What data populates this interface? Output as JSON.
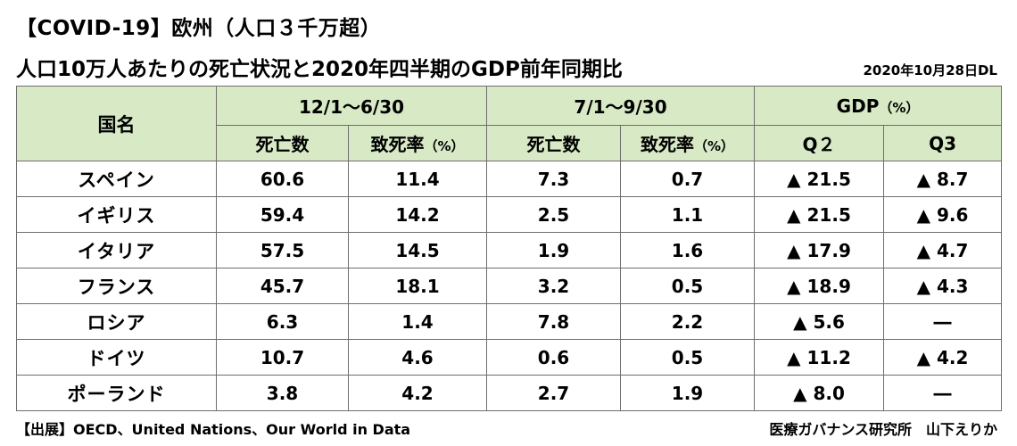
{
  "header": {
    "title": "【COVID-19】欧州（人口３千万超）",
    "subtitle": "人口10万人あたりの死亡状況と2020年四半期のGDP前年同期比",
    "date": "2020年10月28日DL"
  },
  "table": {
    "col_country": "国名",
    "group_a": "12/1～6/30",
    "group_b": "7/1～9/30",
    "group_gdp": "GDP",
    "group_gdp_unit": "（%）",
    "deaths_label": "死亡数",
    "cfr_label": "致死率",
    "cfr_unit": "（%）",
    "q2_label": "Q２",
    "q3_label": "Q3",
    "rows": [
      {
        "country": "スペイン",
        "d1": "60.6",
        "r1": "11.4",
        "d2": "7.3",
        "r2": "0.7",
        "q2": "▲ 21.5",
        "q3": "▲ 8.7"
      },
      {
        "country": "イギリス",
        "d1": "59.4",
        "r1": "14.2",
        "d2": "2.5",
        "r2": "1.1",
        "q2": "▲ 21.5",
        "q3": "▲ 9.6"
      },
      {
        "country": "イタリア",
        "d1": "57.5",
        "r1": "14.5",
        "d2": "1.9",
        "r2": "1.6",
        "q2": "▲ 17.9",
        "q3": "▲ 4.7"
      },
      {
        "country": "フランス",
        "d1": "45.7",
        "r1": "18.1",
        "d2": "3.2",
        "r2": "0.5",
        "q2": "▲ 18.9",
        "q3": "▲ 4.3"
      },
      {
        "country": "ロシア",
        "d1": "6.3",
        "r1": "1.4",
        "d2": "7.8",
        "r2": "2.2",
        "q2": "▲ 5.6",
        "q3": "―"
      },
      {
        "country": "ドイツ",
        "d1": "10.7",
        "r1": "4.6",
        "d2": "0.6",
        "r2": "0.5",
        "q2": "▲ 11.2",
        "q3": "▲ 4.2"
      },
      {
        "country": "ポーランド",
        "d1": "3.8",
        "r1": "4.2",
        "d2": "2.7",
        "r2": "1.9",
        "q2": "▲ 8.0",
        "q3": "―"
      }
    ]
  },
  "footer": {
    "source": "【出展】OECD、United Nations、Our World in Data",
    "credit": "医療ガバナンス研究所　山下えりか"
  },
  "colors": {
    "header_bg": "#d8e9c6",
    "border": "#6e6e6e"
  }
}
